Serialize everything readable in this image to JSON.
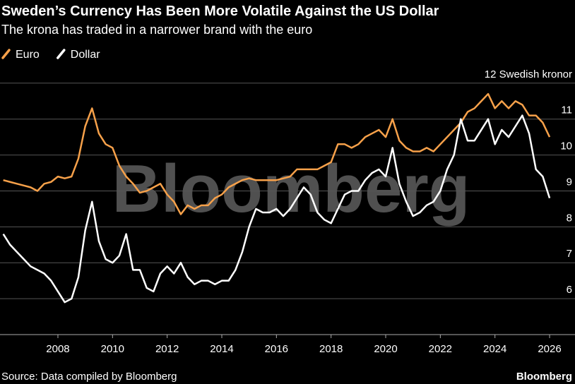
{
  "chart_data": {
    "type": "line",
    "title": "Sweden’s Currency Has Been More Volatile Against the US Dollar",
    "subtitle": "The krona has traded in a narrower brand with the euro",
    "watermark": "Bloomberg",
    "source": "Source: Data compiled by Bloomberg",
    "logo": "Bloomberg",
    "x": [
      2006,
      2006.25,
      2006.5,
      2006.75,
      2007,
      2007.25,
      2007.5,
      2007.75,
      2008,
      2008.25,
      2008.5,
      2008.75,
      2009,
      2009.25,
      2009.5,
      2009.75,
      2010,
      2010.25,
      2010.5,
      2010.75,
      2011,
      2011.25,
      2011.5,
      2011.75,
      2012,
      2012.25,
      2012.5,
      2012.75,
      2013,
      2013.25,
      2013.5,
      2013.75,
      2014,
      2014.25,
      2014.5,
      2014.75,
      2015,
      2015.25,
      2015.5,
      2015.75,
      2016,
      2016.25,
      2016.5,
      2016.75,
      2017,
      2017.25,
      2017.5,
      2017.75,
      2018,
      2018.25,
      2018.5,
      2018.75,
      2019,
      2019.25,
      2019.5,
      2019.75,
      2020,
      2020.25,
      2020.5,
      2020.75,
      2021,
      2021.25,
      2021.5,
      2021.75,
      2022,
      2022.25,
      2022.5,
      2022.75,
      2023,
      2023.25,
      2023.5,
      2023.75,
      2024,
      2024.25,
      2024.5,
      2024.75,
      2025,
      2025.25,
      2025.5,
      2025.75,
      2026
    ],
    "series": [
      {
        "name": "Euro",
        "color": "#f7a14a",
        "values": [
          9.3,
          9.25,
          9.2,
          9.15,
          9.1,
          9.0,
          9.2,
          9.25,
          9.4,
          9.35,
          9.4,
          9.9,
          10.8,
          11.3,
          10.6,
          10.3,
          10.2,
          9.7,
          9.4,
          9.2,
          8.95,
          9.0,
          9.1,
          9.2,
          8.9,
          8.7,
          8.35,
          8.6,
          8.5,
          8.6,
          8.6,
          8.8,
          8.9,
          9.1,
          9.2,
          9.3,
          9.35,
          9.3,
          9.3,
          9.3,
          9.3,
          9.35,
          9.4,
          9.6,
          9.6,
          9.6,
          9.6,
          9.7,
          9.8,
          10.3,
          10.3,
          10.2,
          10.3,
          10.5,
          10.6,
          10.7,
          10.5,
          11.0,
          10.4,
          10.2,
          10.1,
          10.1,
          10.2,
          10.1,
          10.3,
          10.5,
          10.7,
          10.9,
          11.2,
          11.3,
          11.5,
          11.7,
          11.3,
          11.5,
          11.3,
          11.5,
          11.4,
          11.1,
          11.1,
          10.9,
          10.5
        ]
      },
      {
        "name": "Dollar",
        "color": "#ffffff",
        "values": [
          7.8,
          7.5,
          7.3,
          7.1,
          6.9,
          6.8,
          6.7,
          6.5,
          6.2,
          5.9,
          6.0,
          6.6,
          7.9,
          8.7,
          7.6,
          7.1,
          7.0,
          7.2,
          7.8,
          6.8,
          6.8,
          6.3,
          6.2,
          6.7,
          6.9,
          6.7,
          7.0,
          6.6,
          6.4,
          6.5,
          6.5,
          6.4,
          6.5,
          6.5,
          6.8,
          7.3,
          8.0,
          8.5,
          8.4,
          8.4,
          8.5,
          8.3,
          8.5,
          8.8,
          9.1,
          8.9,
          8.4,
          8.2,
          8.1,
          8.5,
          8.9,
          9.0,
          9.0,
          9.3,
          9.5,
          9.6,
          9.4,
          10.2,
          9.2,
          8.7,
          8.3,
          8.4,
          8.6,
          8.7,
          9.0,
          9.6,
          10.0,
          11.0,
          10.4,
          10.4,
          10.7,
          11.0,
          10.3,
          10.7,
          10.5,
          10.8,
          11.1,
          10.6,
          9.6,
          9.4,
          8.8
        ]
      }
    ],
    "xlim": [
      2005.88,
      2026.93
    ],
    "xticks": [
      2008,
      2010,
      2012,
      2014,
      2016,
      2018,
      2020,
      2022,
      2024,
      2026
    ],
    "ylim": [
      5,
      12.35
    ],
    "yticks": [
      6,
      7,
      8,
      9,
      10,
      11,
      {
        "value": 12,
        "label": "12 Swedish kronor"
      }
    ],
    "grid": true
  }
}
